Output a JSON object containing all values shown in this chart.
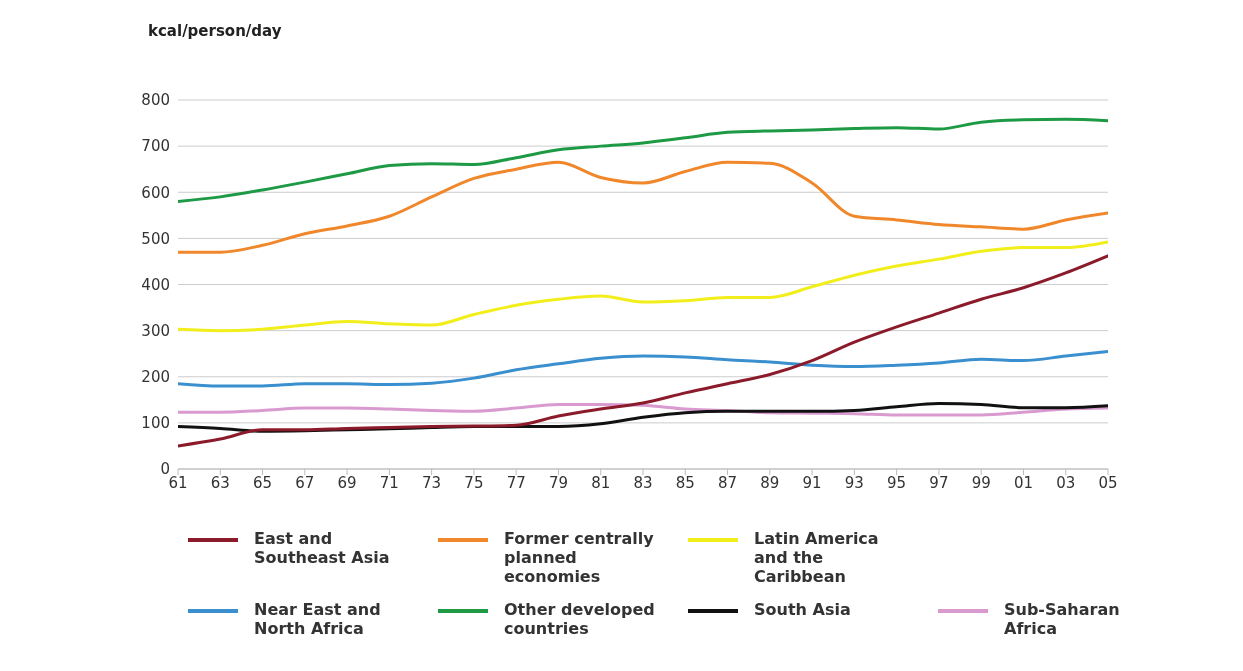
{
  "chart_data": {
    "type": "line",
    "ylabel": "kcal/person/day",
    "x": [
      1961,
      1963,
      1965,
      1967,
      1969,
      1971,
      1973,
      1975,
      1977,
      1979,
      1981,
      1983,
      1985,
      1987,
      1989,
      1991,
      1993,
      1995,
      1997,
      1999,
      2001,
      2003,
      2005
    ],
    "xlim": [
      1961,
      2005
    ],
    "xticks": [
      {
        "value": 1961,
        "label": "61"
      },
      {
        "value": 1963,
        "label": "63"
      },
      {
        "value": 1965,
        "label": "65"
      },
      {
        "value": 1967,
        "label": "67"
      },
      {
        "value": 1969,
        "label": "69"
      },
      {
        "value": 1971,
        "label": "71"
      },
      {
        "value": 1973,
        "label": "73"
      },
      {
        "value": 1975,
        "label": "75"
      },
      {
        "value": 1977,
        "label": "77"
      },
      {
        "value": 1979,
        "label": "79"
      },
      {
        "value": 1981,
        "label": "81"
      },
      {
        "value": 1983,
        "label": "83"
      },
      {
        "value": 1985,
        "label": "85"
      },
      {
        "value": 1987,
        "label": "87"
      },
      {
        "value": 1989,
        "label": "89"
      },
      {
        "value": 1991,
        "label": "91"
      },
      {
        "value": 1993,
        "label": "93"
      },
      {
        "value": 1995,
        "label": "95"
      },
      {
        "value": 1997,
        "label": "97"
      },
      {
        "value": 1999,
        "label": "99"
      },
      {
        "value": 2001,
        "label": "01"
      },
      {
        "value": 2003,
        "label": "03"
      },
      {
        "value": 2005,
        "label": "05"
      }
    ],
    "ylim": [
      0,
      800
    ],
    "yticks": [
      0,
      100,
      200,
      300,
      400,
      500,
      600,
      700,
      800
    ],
    "grid": "y",
    "legend": "bottom",
    "marker": "none",
    "line_style": "solid",
    "series": [
      {
        "name": "East and Southeast Asia",
        "color": "#8b1a2b",
        "values": [
          50,
          65,
          85,
          85,
          88,
          90,
          92,
          93,
          95,
          115,
          130,
          143,
          165,
          185,
          205,
          235,
          275,
          308,
          338,
          368,
          393,
          425,
          462
        ]
      },
      {
        "name": "Former centrally planned economies",
        "color": "#f0872a",
        "values": [
          470,
          470,
          485,
          510,
          527,
          548,
          590,
          630,
          650,
          665,
          632,
          620,
          645,
          665,
          663,
          620,
          548,
          540,
          530,
          525,
          520,
          540,
          555
        ]
      },
      {
        "name": "Latin America and the Caribbean",
        "color": "#f2ee1c",
        "values": [
          303,
          300,
          303,
          312,
          320,
          315,
          312,
          335,
          355,
          368,
          375,
          362,
          365,
          372,
          372,
          395,
          420,
          440,
          455,
          472,
          480,
          480,
          492
        ]
      },
      {
        "name": "Near East and North Africa",
        "color": "#3a8fcf",
        "values": [
          185,
          180,
          180,
          185,
          185,
          183,
          186,
          197,
          215,
          228,
          240,
          245,
          243,
          237,
          232,
          225,
          222,
          225,
          230,
          238,
          235,
          245,
          255
        ]
      },
      {
        "name": "Other developed countries",
        "color": "#1e9a45",
        "values": [
          580,
          590,
          605,
          622,
          640,
          658,
          662,
          660,
          675,
          692,
          700,
          707,
          718,
          730,
          733,
          735,
          738,
          740,
          737,
          752,
          757,
          758,
          755
        ]
      },
      {
        "name": "South Asia",
        "color": "#111111",
        "values": [
          92,
          88,
          82,
          83,
          85,
          87,
          90,
          92,
          92,
          92,
          98,
          112,
          122,
          125,
          125,
          125,
          127,
          135,
          142,
          140,
          133,
          133,
          137
        ]
      },
      {
        "name": "Sub-Saharan Africa",
        "color": "#d99ad0",
        "values": [
          123,
          123,
          127,
          132,
          132,
          130,
          127,
          125,
          132,
          140,
          140,
          138,
          130,
          127,
          122,
          121,
          120,
          117,
          117,
          117,
          123,
          130,
          132
        ]
      }
    ]
  }
}
